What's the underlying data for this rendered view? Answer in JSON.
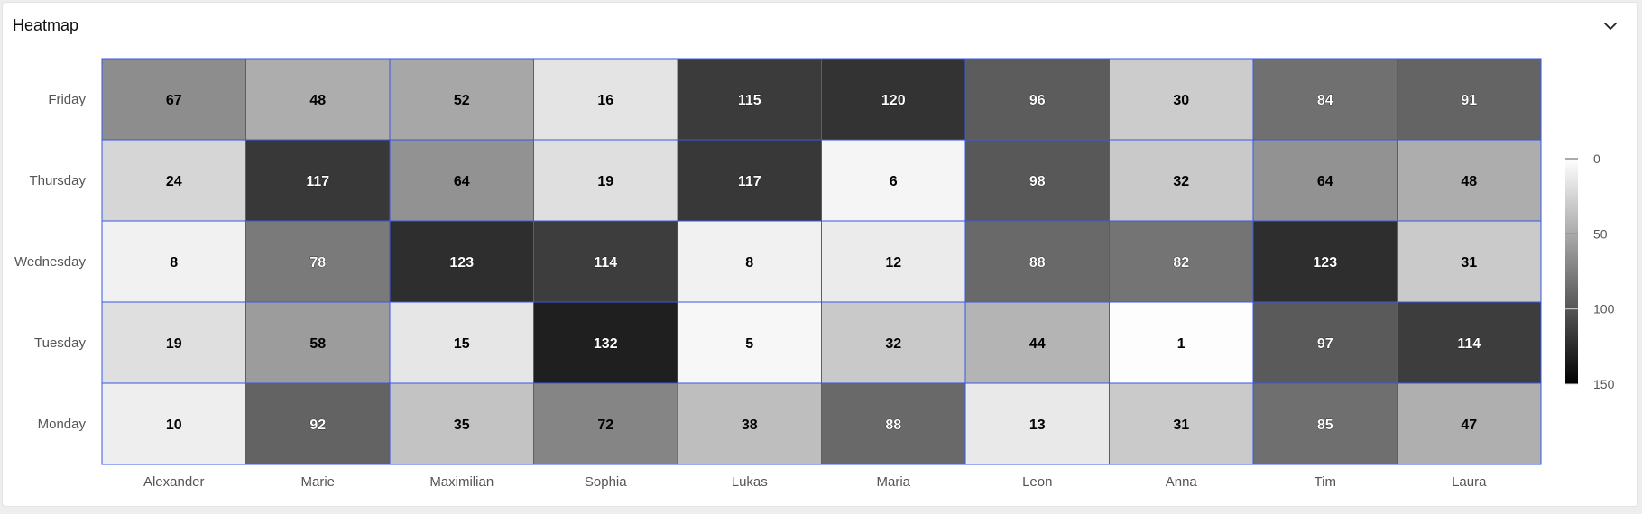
{
  "card": {
    "title": "Heatmap"
  },
  "icons": {
    "collapse": "chevron-down-icon"
  },
  "colors": {
    "cell_border": "#3b57e8",
    "low": "#ffffff",
    "high": "#000000",
    "axis_text": "#555555"
  },
  "chart_data": {
    "type": "heatmap",
    "title": "",
    "x_categories": [
      "Alexander",
      "Marie",
      "Maximilian",
      "Sophia",
      "Lukas",
      "Maria",
      "Leon",
      "Anna",
      "Tim",
      "Laura"
    ],
    "y_categories": [
      "Friday",
      "Thursday",
      "Wednesday",
      "Tuesday",
      "Monday"
    ],
    "values": [
      [
        67,
        48,
        52,
        16,
        115,
        120,
        96,
        30,
        84,
        91
      ],
      [
        24,
        117,
        64,
        19,
        117,
        6,
        98,
        32,
        64,
        48
      ],
      [
        8,
        78,
        123,
        114,
        8,
        12,
        88,
        82,
        123,
        31
      ],
      [
        19,
        58,
        15,
        132,
        5,
        32,
        44,
        1,
        97,
        114
      ],
      [
        10,
        92,
        35,
        72,
        38,
        88,
        13,
        31,
        85,
        47
      ]
    ],
    "color_scale": {
      "min": 0,
      "max": 150,
      "ticks": [
        0,
        50,
        100,
        150
      ],
      "low_color": "#ffffff",
      "high_color": "#000000",
      "legend_position": "right"
    }
  }
}
